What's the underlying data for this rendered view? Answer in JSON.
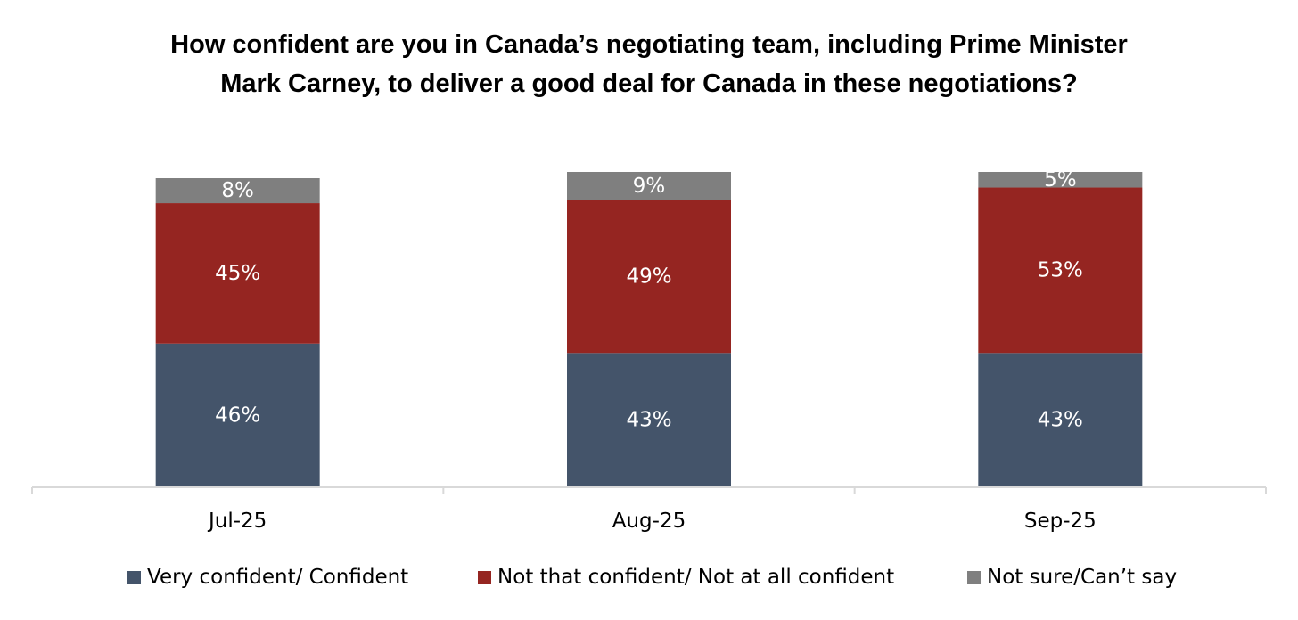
{
  "chart_data": {
    "type": "bar",
    "stacked": true,
    "title": "How confident are you in Canada’s negotiating team, including Prime Minister Mark Carney, to deliver a good deal for Canada in these negotiations?",
    "categories": [
      "Jul-25",
      "Aug-25",
      "Sep-25"
    ],
    "series": [
      {
        "name": "Very confident/ Confident",
        "values": [
          46,
          43,
          43
        ],
        "labels": [
          "46%",
          "43%",
          "43%"
        ],
        "color": "#44546A"
      },
      {
        "name": "Not that confident/ Not at all confident",
        "values": [
          45,
          49,
          53
        ],
        "labels": [
          "45%",
          "49%",
          "53%"
        ],
        "color": "#952521"
      },
      {
        "name": "Not sure/Can’t say",
        "values": [
          8,
          9,
          5
        ],
        "labels": [
          "8%",
          "9%",
          "5%"
        ],
        "color": "#7F7F7F"
      }
    ],
    "value_unit": "%",
    "ylim": [
      0,
      101
    ],
    "grid": false,
    "y_axis_visible": false,
    "legend_position": "bottom",
    "axis_color": "#D9D9D9"
  }
}
